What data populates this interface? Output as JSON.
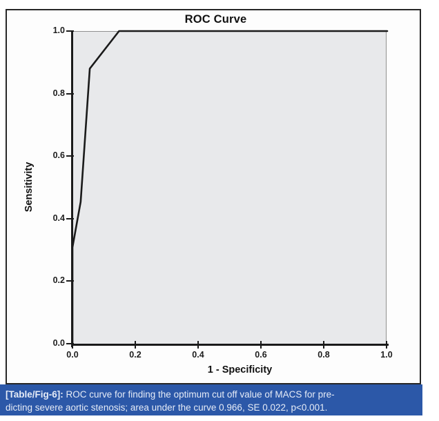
{
  "figure": {
    "caption": {
      "prefix": "[Table/Fig-6]:",
      "line1_rest": " ROC curve for finding the optimum cut off value of MACS for pre-",
      "line2": "dicting severe aortic stenosis; area under the curve 0.966, SE 0.022, p<0.001."
    },
    "colors": {
      "caption_bg": "#2c58a8",
      "caption_text": "#e6ecf7",
      "plot_bg": "#e8e9eb",
      "axis": "#1a1a1a",
      "curve": "#1a1a1a",
      "frame_border": "#262626"
    }
  },
  "chart_data": {
    "type": "line",
    "title": "ROC Curve",
    "xlabel": "1 - Specificity",
    "ylabel": "Sensitivity",
    "xlim": [
      0,
      1
    ],
    "ylim": [
      0,
      1
    ],
    "x_ticks": [
      "0.0",
      "0.2",
      "0.4",
      "0.6",
      "0.8",
      "1.0"
    ],
    "y_ticks": [
      "0.0",
      "0.2",
      "0.4",
      "0.6",
      "0.8",
      "1.0"
    ],
    "grid": false,
    "legend": "none",
    "series": [
      {
        "name": "ROC curve of MACS for predicting severe aortic stenosis",
        "points": [
          [
            0,
            0
          ],
          [
            0,
            0.31
          ],
          [
            0.026,
            0.455
          ],
          [
            0.055,
            0.88
          ],
          [
            0.148,
            1.0
          ],
          [
            1.0,
            1.0
          ]
        ]
      }
    ],
    "annotations": {
      "area_under_curve": 0.966,
      "standard_error": 0.022,
      "p_value": "p<0.001"
    }
  }
}
